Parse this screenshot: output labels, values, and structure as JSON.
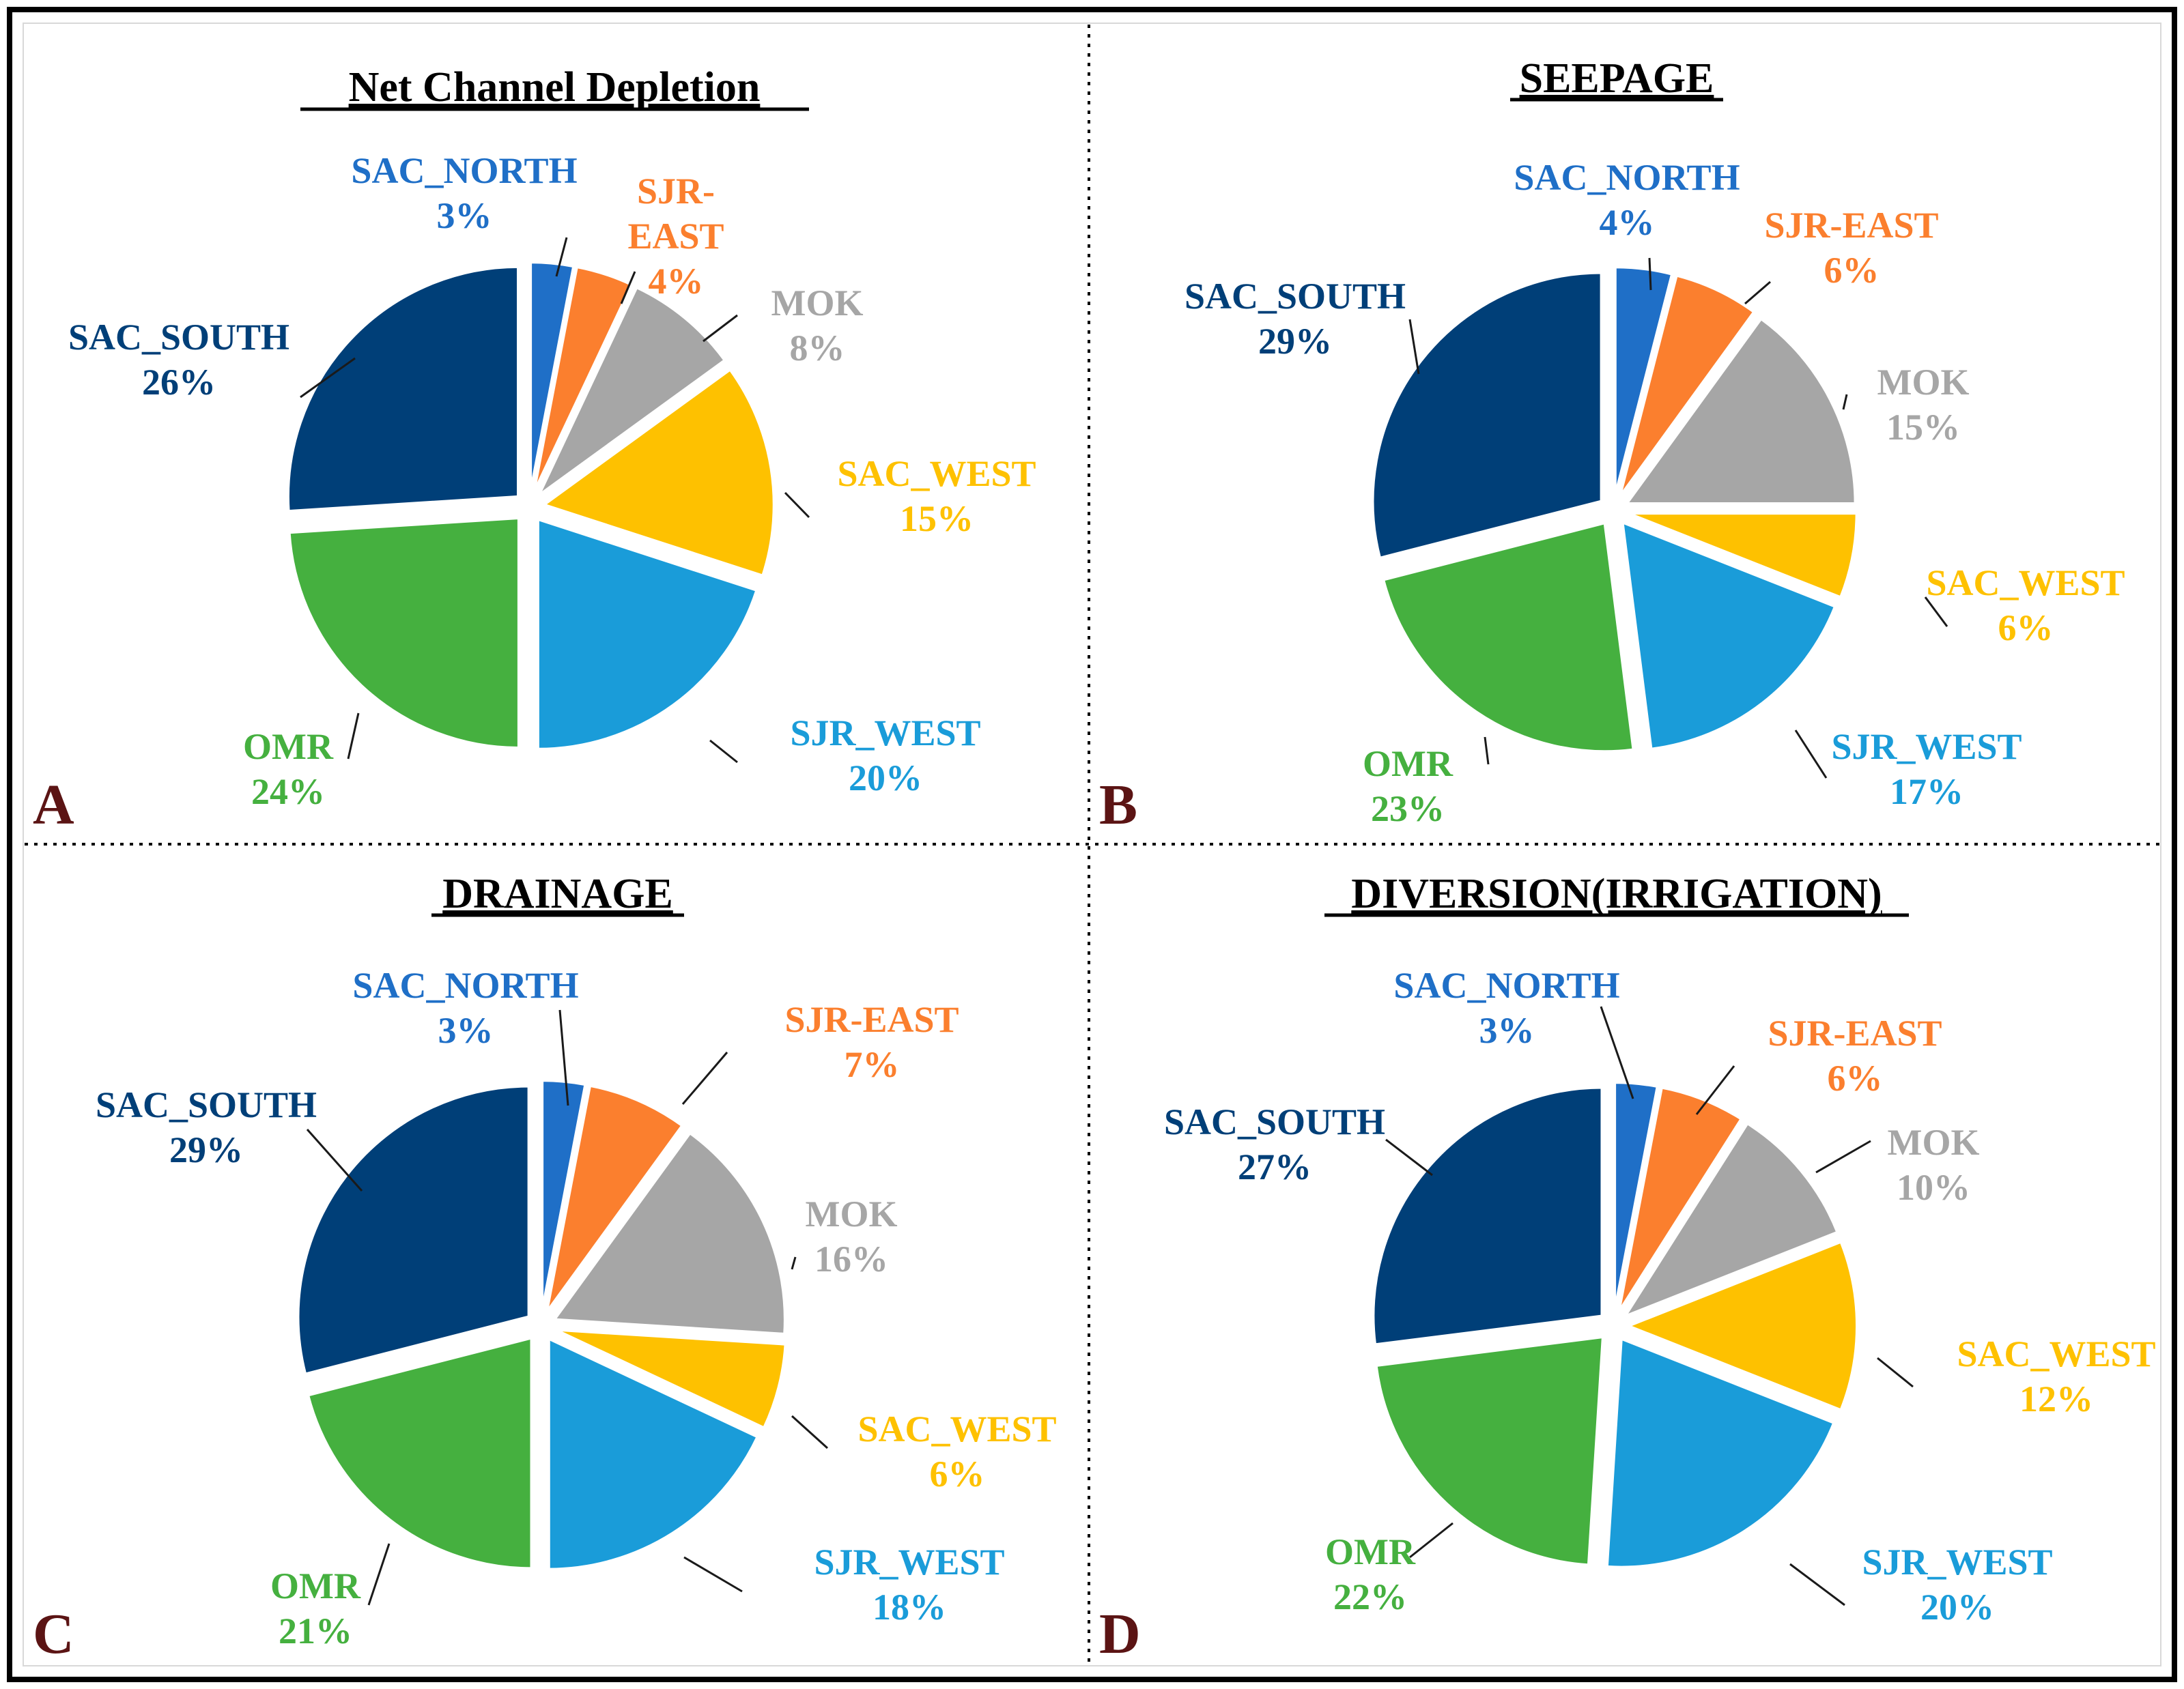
{
  "colors": {
    "SAC_NORTH": "#1f6fc7",
    "SJR-EAST": "#fb7f2e",
    "MOK": "#a6a6a6",
    "SAC_WEST": "#fec100",
    "SJR_WEST": "#1a9cd9",
    "OMR": "#45b03f",
    "SAC_SOUTH": "#003f78"
  },
  "chart_data": [
    {
      "type": "pie",
      "panel": "A",
      "title": "Net Channel Depletion",
      "categories": [
        "SAC_NORTH",
        "SJR-EAST",
        "MOK",
        "SAC_WEST",
        "SJR_WEST",
        "OMR",
        "SAC_SOUTH"
      ],
      "values": [
        3,
        4,
        8,
        15,
        20,
        24,
        26
      ],
      "labels": [
        {
          "name": "SAC_NORTH",
          "pct": "3%"
        },
        {
          "name": "SJR-",
          "name2": "EAST",
          "pct": "4%"
        },
        {
          "name": "MOK",
          "pct": "8%"
        },
        {
          "name": "SAC_WEST",
          "pct": "15%"
        },
        {
          "name": "SJR_WEST",
          "pct": "20%"
        },
        {
          "name": "OMR",
          "pct": "24%"
        },
        {
          "name": "SAC_SOUTH",
          "pct": "26%"
        }
      ]
    },
    {
      "type": "pie",
      "panel": "B",
      "title": "SEEPAGE",
      "categories": [
        "SAC_NORTH",
        "SJR-EAST",
        "MOK",
        "SAC_WEST",
        "SJR_WEST",
        "OMR",
        "SAC_SOUTH"
      ],
      "values": [
        4,
        6,
        15,
        6,
        17,
        23,
        29
      ],
      "labels": [
        {
          "name": "SAC_NORTH",
          "pct": "4%"
        },
        {
          "name": "SJR-EAST",
          "pct": "6%"
        },
        {
          "name": "MOK",
          "pct": "15%"
        },
        {
          "name": "SAC_WEST",
          "pct": "6%"
        },
        {
          "name": "SJR_WEST",
          "pct": "17%"
        },
        {
          "name": "OMR",
          "pct": "23%"
        },
        {
          "name": "SAC_SOUTH",
          "pct": "29%"
        }
      ]
    },
    {
      "type": "pie",
      "panel": "C",
      "title": "DRAINAGE",
      "categories": [
        "SAC_NORTH",
        "SJR-EAST",
        "MOK",
        "SAC_WEST",
        "SJR_WEST",
        "OMR",
        "SAC_SOUTH"
      ],
      "values": [
        3,
        7,
        16,
        6,
        18,
        21,
        29
      ],
      "labels": [
        {
          "name": "SAC_NORTH",
          "pct": "3%"
        },
        {
          "name": "SJR-EAST",
          "pct": "7%"
        },
        {
          "name": "MOK",
          "pct": "16%"
        },
        {
          "name": "SAC_WEST",
          "pct": "6%"
        },
        {
          "name": "SJR_WEST",
          "pct": "18%"
        },
        {
          "name": "OMR",
          "pct": "21%"
        },
        {
          "name": "SAC_SOUTH",
          "pct": "29%"
        }
      ]
    },
    {
      "type": "pie",
      "panel": "D",
      "title": "DIVERSION(IRRIGATION)",
      "categories": [
        "SAC_NORTH",
        "SJR-EAST",
        "MOK",
        "SAC_WEST",
        "SJR_WEST",
        "OMR",
        "SAC_SOUTH"
      ],
      "values": [
        3,
        6,
        10,
        12,
        20,
        22,
        27
      ],
      "labels": [
        {
          "name": "SAC_NORTH",
          "pct": "3%"
        },
        {
          "name": "SJR-EAST",
          "pct": "6%"
        },
        {
          "name": "MOK",
          "pct": "10%"
        },
        {
          "name": "SAC_WEST",
          "pct": "12%"
        },
        {
          "name": "SJR_WEST",
          "pct": "20%"
        },
        {
          "name": "OMR",
          "pct": "22%"
        },
        {
          "name": "SAC_SOUTH",
          "pct": "27%"
        }
      ]
    }
  ]
}
